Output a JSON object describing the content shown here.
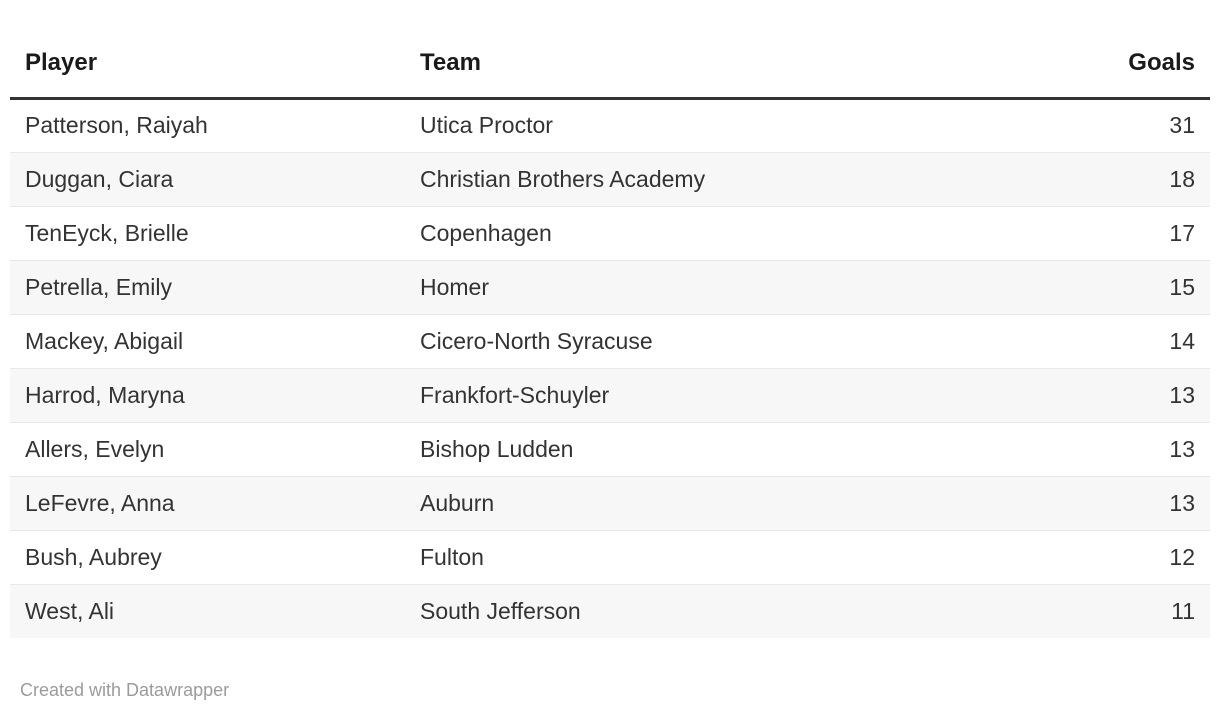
{
  "table": {
    "columns": [
      {
        "key": "player",
        "label": "Player",
        "align": "left"
      },
      {
        "key": "team",
        "label": "Team",
        "align": "left"
      },
      {
        "key": "goals",
        "label": "Goals",
        "align": "right"
      }
    ],
    "rows": [
      {
        "player": "Patterson, Raiyah",
        "team": "Utica Proctor",
        "goals": "31"
      },
      {
        "player": "Duggan, Ciara",
        "team": "Christian Brothers Academy",
        "goals": "18"
      },
      {
        "player": "TenEyck, Brielle",
        "team": "Copenhagen",
        "goals": "17"
      },
      {
        "player": "Petrella, Emily",
        "team": "Homer",
        "goals": "15"
      },
      {
        "player": "Mackey, Abigail",
        "team": "Cicero-North Syracuse",
        "goals": "14"
      },
      {
        "player": "Harrod, Maryna",
        "team": "Frankfort-Schuyler",
        "goals": "13"
      },
      {
        "player": "Allers, Evelyn",
        "team": "Bishop Ludden",
        "goals": "13"
      },
      {
        "player": "LeFevre, Anna",
        "team": "Auburn",
        "goals": "13"
      },
      {
        "player": "Bush, Aubrey",
        "team": "Fulton",
        "goals": "12"
      },
      {
        "player": "West, Ali",
        "team": "South Jefferson",
        "goals": "11"
      }
    ]
  },
  "footer": {
    "attribution": "Created with Datawrapper"
  },
  "colors": {
    "header_text": "#1a1a1a",
    "body_text": "#333333",
    "header_rule": "#333333",
    "row_stripe": "#f7f7f7",
    "row_separator": "#e8e8e8",
    "attribution_text": "#9b9b9b",
    "background": "#ffffff"
  },
  "chart_data": {
    "type": "table",
    "columns": [
      "Player",
      "Team",
      "Goals"
    ],
    "column_alignments": [
      "left",
      "left",
      "right"
    ],
    "rows": [
      [
        "Patterson, Raiyah",
        "Utica Proctor",
        31
      ],
      [
        "Duggan, Ciara",
        "Christian Brothers Academy",
        18
      ],
      [
        "TenEyck, Brielle",
        "Copenhagen",
        17
      ],
      [
        "Petrella, Emily",
        "Homer",
        15
      ],
      [
        "Mackey, Abigail",
        "Cicero-North Syracuse",
        14
      ],
      [
        "Harrod, Maryna",
        "Frankfort-Schuyler",
        13
      ],
      [
        "Allers, Evelyn",
        "Bishop Ludden",
        13
      ],
      [
        "LeFevre, Anna",
        "Auburn",
        13
      ],
      [
        "Bush, Aubrey",
        "Fulton",
        12
      ],
      [
        "West, Ali",
        "South Jefferson",
        11
      ]
    ],
    "layout_hints": {
      "striped_rows": true,
      "stripe_start": "second-row",
      "header_rule": "thick-dark",
      "goals_column": "right-aligned"
    }
  }
}
